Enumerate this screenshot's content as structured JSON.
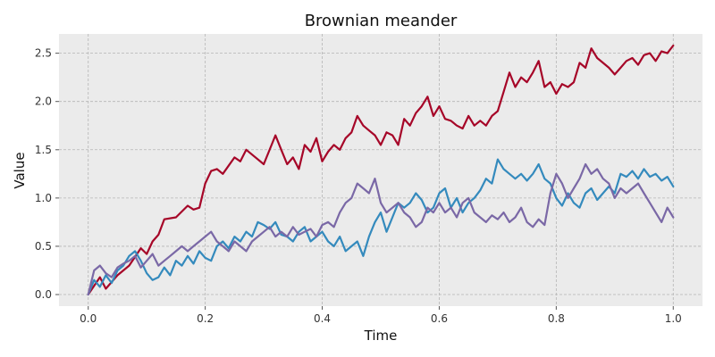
{
  "chart_data": {
    "type": "line",
    "title": "Brownian meander",
    "xlabel": "Time",
    "ylabel": "Value",
    "xlim": [
      -0.05,
      1.05
    ],
    "ylim": [
      -0.12,
      2.7
    ],
    "xticks": [
      0.0,
      0.2,
      0.4,
      0.6,
      0.8,
      1.0
    ],
    "xtick_labels": [
      "0.0",
      "0.2",
      "0.4",
      "0.6",
      "0.8",
      "1.0"
    ],
    "yticks": [
      0.0,
      0.5,
      1.0,
      1.5,
      2.0,
      2.5
    ],
    "ytick_labels": [
      "0.0",
      "0.5",
      "1.0",
      "1.5",
      "2.0",
      "2.5"
    ],
    "grid": true,
    "background": "#ebebeb",
    "series": [
      {
        "color": "#a60628",
        "x": [
          0.0,
          0.02,
          0.03,
          0.05,
          0.07,
          0.09,
          0.1,
          0.11,
          0.12,
          0.13,
          0.15,
          0.17,
          0.18,
          0.19,
          0.2,
          0.21,
          0.22,
          0.23,
          0.25,
          0.26,
          0.27,
          0.28,
          0.3,
          0.32,
          0.33,
          0.34,
          0.35,
          0.36,
          0.37,
          0.38,
          0.39,
          0.4,
          0.41,
          0.42,
          0.43,
          0.44,
          0.45,
          0.46,
          0.47,
          0.48,
          0.49,
          0.5,
          0.51,
          0.52,
          0.53,
          0.54,
          0.55,
          0.56,
          0.57,
          0.58,
          0.59,
          0.6,
          0.61,
          0.62,
          0.63,
          0.64,
          0.65,
          0.66,
          0.67,
          0.68,
          0.69,
          0.7,
          0.71,
          0.72,
          0.73,
          0.74,
          0.75,
          0.76,
          0.77,
          0.78,
          0.79,
          0.8,
          0.81,
          0.82,
          0.83,
          0.84,
          0.85,
          0.86,
          0.87,
          0.88,
          0.89,
          0.9,
          0.91,
          0.92,
          0.93,
          0.94,
          0.95,
          0.96,
          0.97,
          0.98,
          0.99,
          1.0
        ],
        "y": [
          0.0,
          0.18,
          0.06,
          0.2,
          0.3,
          0.48,
          0.42,
          0.55,
          0.62,
          0.78,
          0.8,
          0.92,
          0.88,
          0.9,
          1.15,
          1.28,
          1.3,
          1.25,
          1.42,
          1.38,
          1.5,
          1.45,
          1.35,
          1.65,
          1.5,
          1.35,
          1.42,
          1.3,
          1.55,
          1.48,
          1.62,
          1.38,
          1.48,
          1.55,
          1.5,
          1.62,
          1.68,
          1.85,
          1.75,
          1.7,
          1.65,
          1.55,
          1.68,
          1.65,
          1.55,
          1.82,
          1.75,
          1.88,
          1.95,
          2.05,
          1.85,
          1.95,
          1.82,
          1.8,
          1.75,
          1.72,
          1.85,
          1.75,
          1.8,
          1.75,
          1.85,
          1.9,
          2.1,
          2.3,
          2.15,
          2.25,
          2.2,
          2.3,
          2.42,
          2.15,
          2.2,
          2.08,
          2.18,
          2.15,
          2.2,
          2.4,
          2.35,
          2.55,
          2.45,
          2.4,
          2.35,
          2.28,
          2.35,
          2.42,
          2.45,
          2.38,
          2.48,
          2.5,
          2.42,
          2.52,
          2.5,
          2.58
        ]
      },
      {
        "color": "#348abd",
        "x": [
          0.0,
          0.01,
          0.02,
          0.03,
          0.04,
          0.05,
          0.06,
          0.07,
          0.08,
          0.09,
          0.1,
          0.11,
          0.12,
          0.13,
          0.14,
          0.15,
          0.16,
          0.17,
          0.18,
          0.19,
          0.2,
          0.21,
          0.22,
          0.23,
          0.24,
          0.25,
          0.26,
          0.27,
          0.28,
          0.29,
          0.3,
          0.31,
          0.32,
          0.33,
          0.34,
          0.35,
          0.36,
          0.37,
          0.38,
          0.39,
          0.4,
          0.41,
          0.42,
          0.43,
          0.44,
          0.45,
          0.46,
          0.47,
          0.48,
          0.49,
          0.5,
          0.51,
          0.52,
          0.53,
          0.54,
          0.55,
          0.56,
          0.57,
          0.58,
          0.59,
          0.6,
          0.61,
          0.62,
          0.63,
          0.64,
          0.65,
          0.66,
          0.67,
          0.68,
          0.69,
          0.7,
          0.71,
          0.72,
          0.73,
          0.74,
          0.75,
          0.76,
          0.77,
          0.78,
          0.79,
          0.8,
          0.81,
          0.82,
          0.83,
          0.84,
          0.85,
          0.86,
          0.87,
          0.88,
          0.89,
          0.9,
          0.91,
          0.92,
          0.93,
          0.94,
          0.95,
          0.96,
          0.97,
          0.98,
          0.99,
          1.0
        ],
        "y": [
          0.0,
          0.15,
          0.08,
          0.2,
          0.12,
          0.25,
          0.3,
          0.4,
          0.45,
          0.35,
          0.22,
          0.15,
          0.18,
          0.28,
          0.2,
          0.35,
          0.3,
          0.4,
          0.32,
          0.45,
          0.38,
          0.35,
          0.5,
          0.55,
          0.48,
          0.6,
          0.55,
          0.65,
          0.6,
          0.75,
          0.72,
          0.68,
          0.75,
          0.62,
          0.6,
          0.55,
          0.65,
          0.7,
          0.55,
          0.6,
          0.65,
          0.55,
          0.5,
          0.6,
          0.45,
          0.5,
          0.55,
          0.4,
          0.6,
          0.75,
          0.85,
          0.65,
          0.8,
          0.95,
          0.9,
          0.95,
          1.05,
          0.98,
          0.85,
          0.9,
          1.05,
          1.1,
          0.9,
          1.0,
          0.85,
          0.95,
          1.0,
          1.08,
          1.2,
          1.15,
          1.4,
          1.3,
          1.25,
          1.2,
          1.25,
          1.18,
          1.25,
          1.35,
          1.2,
          1.15,
          1.0,
          0.92,
          1.05,
          0.95,
          0.9,
          1.05,
          1.1,
          0.98,
          1.05,
          1.12,
          1.05,
          1.25,
          1.22,
          1.28,
          1.2,
          1.3,
          1.22,
          1.25,
          1.18,
          1.22,
          1.12
        ]
      },
      {
        "color": "#7a68a6",
        "x": [
          0.0,
          0.01,
          0.02,
          0.03,
          0.04,
          0.05,
          0.06,
          0.07,
          0.08,
          0.09,
          0.1,
          0.11,
          0.12,
          0.13,
          0.14,
          0.15,
          0.16,
          0.17,
          0.18,
          0.19,
          0.2,
          0.21,
          0.22,
          0.23,
          0.24,
          0.25,
          0.26,
          0.27,
          0.28,
          0.29,
          0.3,
          0.31,
          0.32,
          0.33,
          0.34,
          0.35,
          0.36,
          0.37,
          0.38,
          0.39,
          0.4,
          0.41,
          0.42,
          0.43,
          0.44,
          0.45,
          0.46,
          0.47,
          0.48,
          0.49,
          0.5,
          0.51,
          0.52,
          0.53,
          0.54,
          0.55,
          0.56,
          0.57,
          0.58,
          0.59,
          0.6,
          0.61,
          0.62,
          0.63,
          0.64,
          0.65,
          0.66,
          0.67,
          0.68,
          0.69,
          0.7,
          0.71,
          0.72,
          0.73,
          0.74,
          0.75,
          0.76,
          0.77,
          0.78,
          0.79,
          0.8,
          0.81,
          0.82,
          0.83,
          0.84,
          0.85,
          0.86,
          0.87,
          0.88,
          0.89,
          0.9,
          0.91,
          0.92,
          0.93,
          0.94,
          0.95,
          0.96,
          0.97,
          0.98,
          0.99,
          1.0
        ],
        "y": [
          0.0,
          0.25,
          0.3,
          0.22,
          0.18,
          0.28,
          0.32,
          0.35,
          0.4,
          0.28,
          0.35,
          0.42,
          0.3,
          0.35,
          0.4,
          0.45,
          0.5,
          0.45,
          0.5,
          0.55,
          0.6,
          0.65,
          0.55,
          0.5,
          0.45,
          0.55,
          0.5,
          0.45,
          0.55,
          0.6,
          0.65,
          0.7,
          0.6,
          0.65,
          0.6,
          0.7,
          0.62,
          0.65,
          0.68,
          0.6,
          0.72,
          0.75,
          0.7,
          0.85,
          0.95,
          1.0,
          1.15,
          1.1,
          1.05,
          1.2,
          0.95,
          0.85,
          0.9,
          0.95,
          0.85,
          0.8,
          0.7,
          0.75,
          0.9,
          0.85,
          0.95,
          0.85,
          0.9,
          0.8,
          0.95,
          1.0,
          0.85,
          0.8,
          0.75,
          0.82,
          0.78,
          0.85,
          0.75,
          0.8,
          0.9,
          0.75,
          0.7,
          0.78,
          0.72,
          1.05,
          1.25,
          1.15,
          1.0,
          1.1,
          1.2,
          1.35,
          1.25,
          1.3,
          1.2,
          1.15,
          1.0,
          1.1,
          1.05,
          1.1,
          1.15,
          1.05,
          0.95,
          0.85,
          0.75,
          0.9,
          0.8
        ]
      }
    ]
  }
}
